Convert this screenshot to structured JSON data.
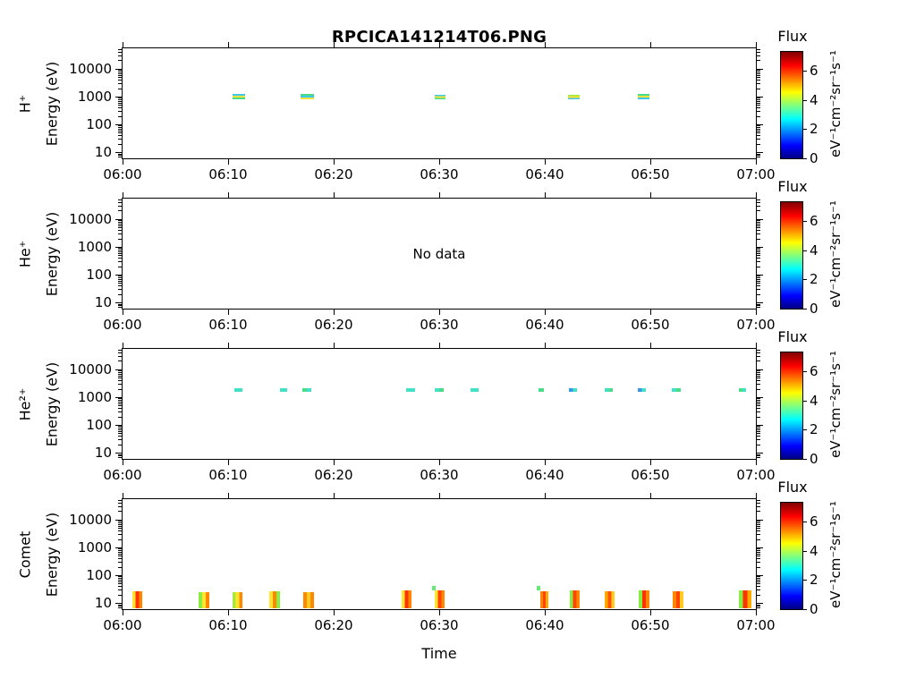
{
  "chart_data": {
    "type": "heatmap",
    "title": "RPCICA141214T06.PNG",
    "xlabel": "Time",
    "x_ticks": [
      "06:00",
      "06:10",
      "06:20",
      "06:30",
      "06:40",
      "06:50",
      "07:00"
    ],
    "x_tick_minutes": [
      0,
      10,
      20,
      30,
      40,
      50,
      60
    ],
    "x_range_minutes": [
      0,
      60
    ],
    "ylabel": "Energy (eV)",
    "y_scale": "log",
    "y_ticks": [
      10000,
      1000,
      100,
      10
    ],
    "y_tick_labels": [
      "10000",
      "1000",
      "100",
      "10"
    ],
    "y_range_ev": [
      6,
      54000
    ],
    "grid": false,
    "colorbar": {
      "title": "Flux",
      "unit": "eV⁻¹cm⁻²sr⁻¹s⁻¹",
      "tick_values": [
        0,
        2,
        4,
        6
      ],
      "tick_labels": [
        "0",
        "2",
        "4",
        "6"
      ],
      "range": [
        0,
        7.3
      ],
      "colormap": "jet"
    },
    "panels": [
      {
        "species": "H⁺",
        "no_data": false,
        "event_dir": "v",
        "events": [
          {
            "t": [
              10.4,
              11.6
            ],
            "e": [
              780,
              1200
            ],
            "colors": [
              "#3fc8e8",
              "#f2e33c",
              "#49dd8a"
            ],
            "flux_max": 4.5
          },
          {
            "t": [
              16.9,
              18.1
            ],
            "e": [
              780,
              1200
            ],
            "colors": [
              "#49dd8a",
              "#3fc8e8",
              "#f2e33c"
            ],
            "flux_max": 4.5
          },
          {
            "t": [
              29.6,
              30.6
            ],
            "e": [
              780,
              1150
            ],
            "colors": [
              "#3fc8e8",
              "#f2e33c",
              "#49dd8a"
            ],
            "flux_max": 4.3
          },
          {
            "t": [
              42.2,
              43.3
            ],
            "e": [
              780,
              1150
            ],
            "colors": [
              "#a8e83c",
              "#f2e33c",
              "#3fc8e8"
            ],
            "flux_max": 4.6
          },
          {
            "t": [
              48.8,
              49.9
            ],
            "e": [
              780,
              1200
            ],
            "colors": [
              "#49dd8a",
              "#f2e33c",
              "#3fc8e8"
            ],
            "flux_max": 4.6
          }
        ]
      },
      {
        "species": "He⁺",
        "no_data": true,
        "no_data_label": "No data",
        "event_dir": "h",
        "events": []
      },
      {
        "species": "He²⁺",
        "no_data": false,
        "event_dir": "h",
        "events": [
          {
            "t": [
              10.6,
              11.4
            ],
            "e": [
              1550,
              2150
            ],
            "colors": [
              "#45e0c8"
            ],
            "flux_max": 3.0
          },
          {
            "t": [
              14.9,
              15.6
            ],
            "e": [
              1550,
              2150
            ],
            "colors": [
              "#45e0c8"
            ],
            "flux_max": 3.0
          },
          {
            "t": [
              17.0,
              17.9
            ],
            "e": [
              1550,
              2150
            ],
            "colors": [
              "#49dd8a",
              "#45e0c8"
            ],
            "flux_max": 3.3
          },
          {
            "t": [
              26.9,
              27.7
            ],
            "e": [
              1550,
              2150
            ],
            "colors": [
              "#45e0c8"
            ],
            "flux_max": 3.0
          },
          {
            "t": [
              29.6,
              30.4
            ],
            "e": [
              1550,
              2150
            ],
            "colors": [
              "#45e0c8",
              "#49dd8a"
            ],
            "flux_max": 3.2
          },
          {
            "t": [
              33.0,
              33.7
            ],
            "e": [
              1550,
              2150
            ],
            "colors": [
              "#45e0c8"
            ],
            "flux_max": 3.0
          },
          {
            "t": [
              39.4,
              39.9
            ],
            "e": [
              1600,
              2100
            ],
            "colors": [
              "#49dd8a"
            ],
            "flux_max": 3.4
          },
          {
            "t": [
              42.3,
              43.1
            ],
            "e": [
              1550,
              2150
            ],
            "colors": [
              "#3898e8",
              "#45e0c8"
            ],
            "flux_max": 3.0
          },
          {
            "t": [
              45.7,
              46.4
            ],
            "e": [
              1550,
              2150
            ],
            "colors": [
              "#45e0c8",
              "#49dd8a"
            ],
            "flux_max": 3.2
          },
          {
            "t": [
              48.8,
              49.6
            ],
            "e": [
              1550,
              2150
            ],
            "colors": [
              "#3898e8",
              "#45e0c8"
            ],
            "flux_max": 3.0
          },
          {
            "t": [
              52.0,
              52.9
            ],
            "e": [
              1550,
              2150
            ],
            "colors": [
              "#45e0c8",
              "#49dd8a"
            ],
            "flux_max": 3.2
          },
          {
            "t": [
              58.4,
              59.1
            ],
            "e": [
              1600,
              2100
            ],
            "colors": [
              "#49dd8a",
              "#45e0c8"
            ],
            "flux_max": 3.2
          }
        ]
      },
      {
        "species": "Comet",
        "no_data": false,
        "event_dir": "h",
        "events": [
          {
            "t": [
              0.9,
              1.9
            ],
            "e": [
              6.5,
              27
            ],
            "colors": [
              "#ffe430",
              "#ff3300",
              "#ff8800"
            ],
            "flux_max": 6.4
          },
          {
            "t": [
              7.2,
              8.2
            ],
            "e": [
              6.5,
              25
            ],
            "colors": [
              "#88ee44",
              "#ffe430",
              "#ff8800"
            ],
            "flux_max": 5.2
          },
          {
            "t": [
              10.4,
              11.4
            ],
            "e": [
              6.5,
              25
            ],
            "colors": [
              "#a8e83c",
              "#ffe430",
              "#ff8800"
            ],
            "flux_max": 5.2
          },
          {
            "t": [
              13.9,
              14.9
            ],
            "e": [
              6.5,
              26
            ],
            "colors": [
              "#ffe430",
              "#ff8800",
              "#88ee44"
            ],
            "flux_max": 5.4
          },
          {
            "t": [
              17.1,
              18.1
            ],
            "e": [
              6.5,
              25
            ],
            "colors": [
              "#ff8800",
              "#ffcc22",
              "#ff8800"
            ],
            "flux_max": 5.4
          },
          {
            "t": [
              26.4,
              27.4
            ],
            "e": [
              6.5,
              28
            ],
            "colors": [
              "#ffe430",
              "#ff3300",
              "#ff8800"
            ],
            "flux_max": 6.6
          },
          {
            "t": [
              29.3,
              29.7
            ],
            "e": [
              28,
              42
            ],
            "colors": [
              "#66e877"
            ],
            "flux_max": 3.5
          },
          {
            "t": [
              29.6,
              30.5
            ],
            "e": [
              6.5,
              28
            ],
            "colors": [
              "#ffe430",
              "#ff4400",
              "#ff8800"
            ],
            "flux_max": 6.4
          },
          {
            "t": [
              39.2,
              39.6
            ],
            "e": [
              28,
              40
            ],
            "colors": [
              "#66e877"
            ],
            "flux_max": 3.5
          },
          {
            "t": [
              39.6,
              40.3
            ],
            "e": [
              6.5,
              27
            ],
            "colors": [
              "#ff8800",
              "#ff4400",
              "#ffaa00"
            ],
            "flux_max": 6.2
          },
          {
            "t": [
              42.4,
              43.3
            ],
            "e": [
              6.5,
              28
            ],
            "colors": [
              "#88ee44",
              "#ff4400",
              "#ff8800"
            ],
            "flux_max": 6.3
          },
          {
            "t": [
              45.7,
              46.6
            ],
            "e": [
              6.5,
              26
            ],
            "colors": [
              "#ffaa00",
              "#ff5500",
              "#ffcc22"
            ],
            "flux_max": 6.0
          },
          {
            "t": [
              48.9,
              49.9
            ],
            "e": [
              6.5,
              28
            ],
            "colors": [
              "#88ee44",
              "#ff3300",
              "#ff8800"
            ],
            "flux_max": 6.5
          },
          {
            "t": [
              52.1,
              53.1
            ],
            "e": [
              6.5,
              27
            ],
            "colors": [
              "#ff8800",
              "#ff4400",
              "#ffcc22"
            ],
            "flux_max": 6.2
          },
          {
            "t": [
              58.4,
              59.6
            ],
            "e": [
              6.5,
              28
            ],
            "colors": [
              "#88ee44",
              "#ff3300",
              "#ffaa00"
            ],
            "flux_max": 6.5
          }
        ]
      }
    ]
  }
}
